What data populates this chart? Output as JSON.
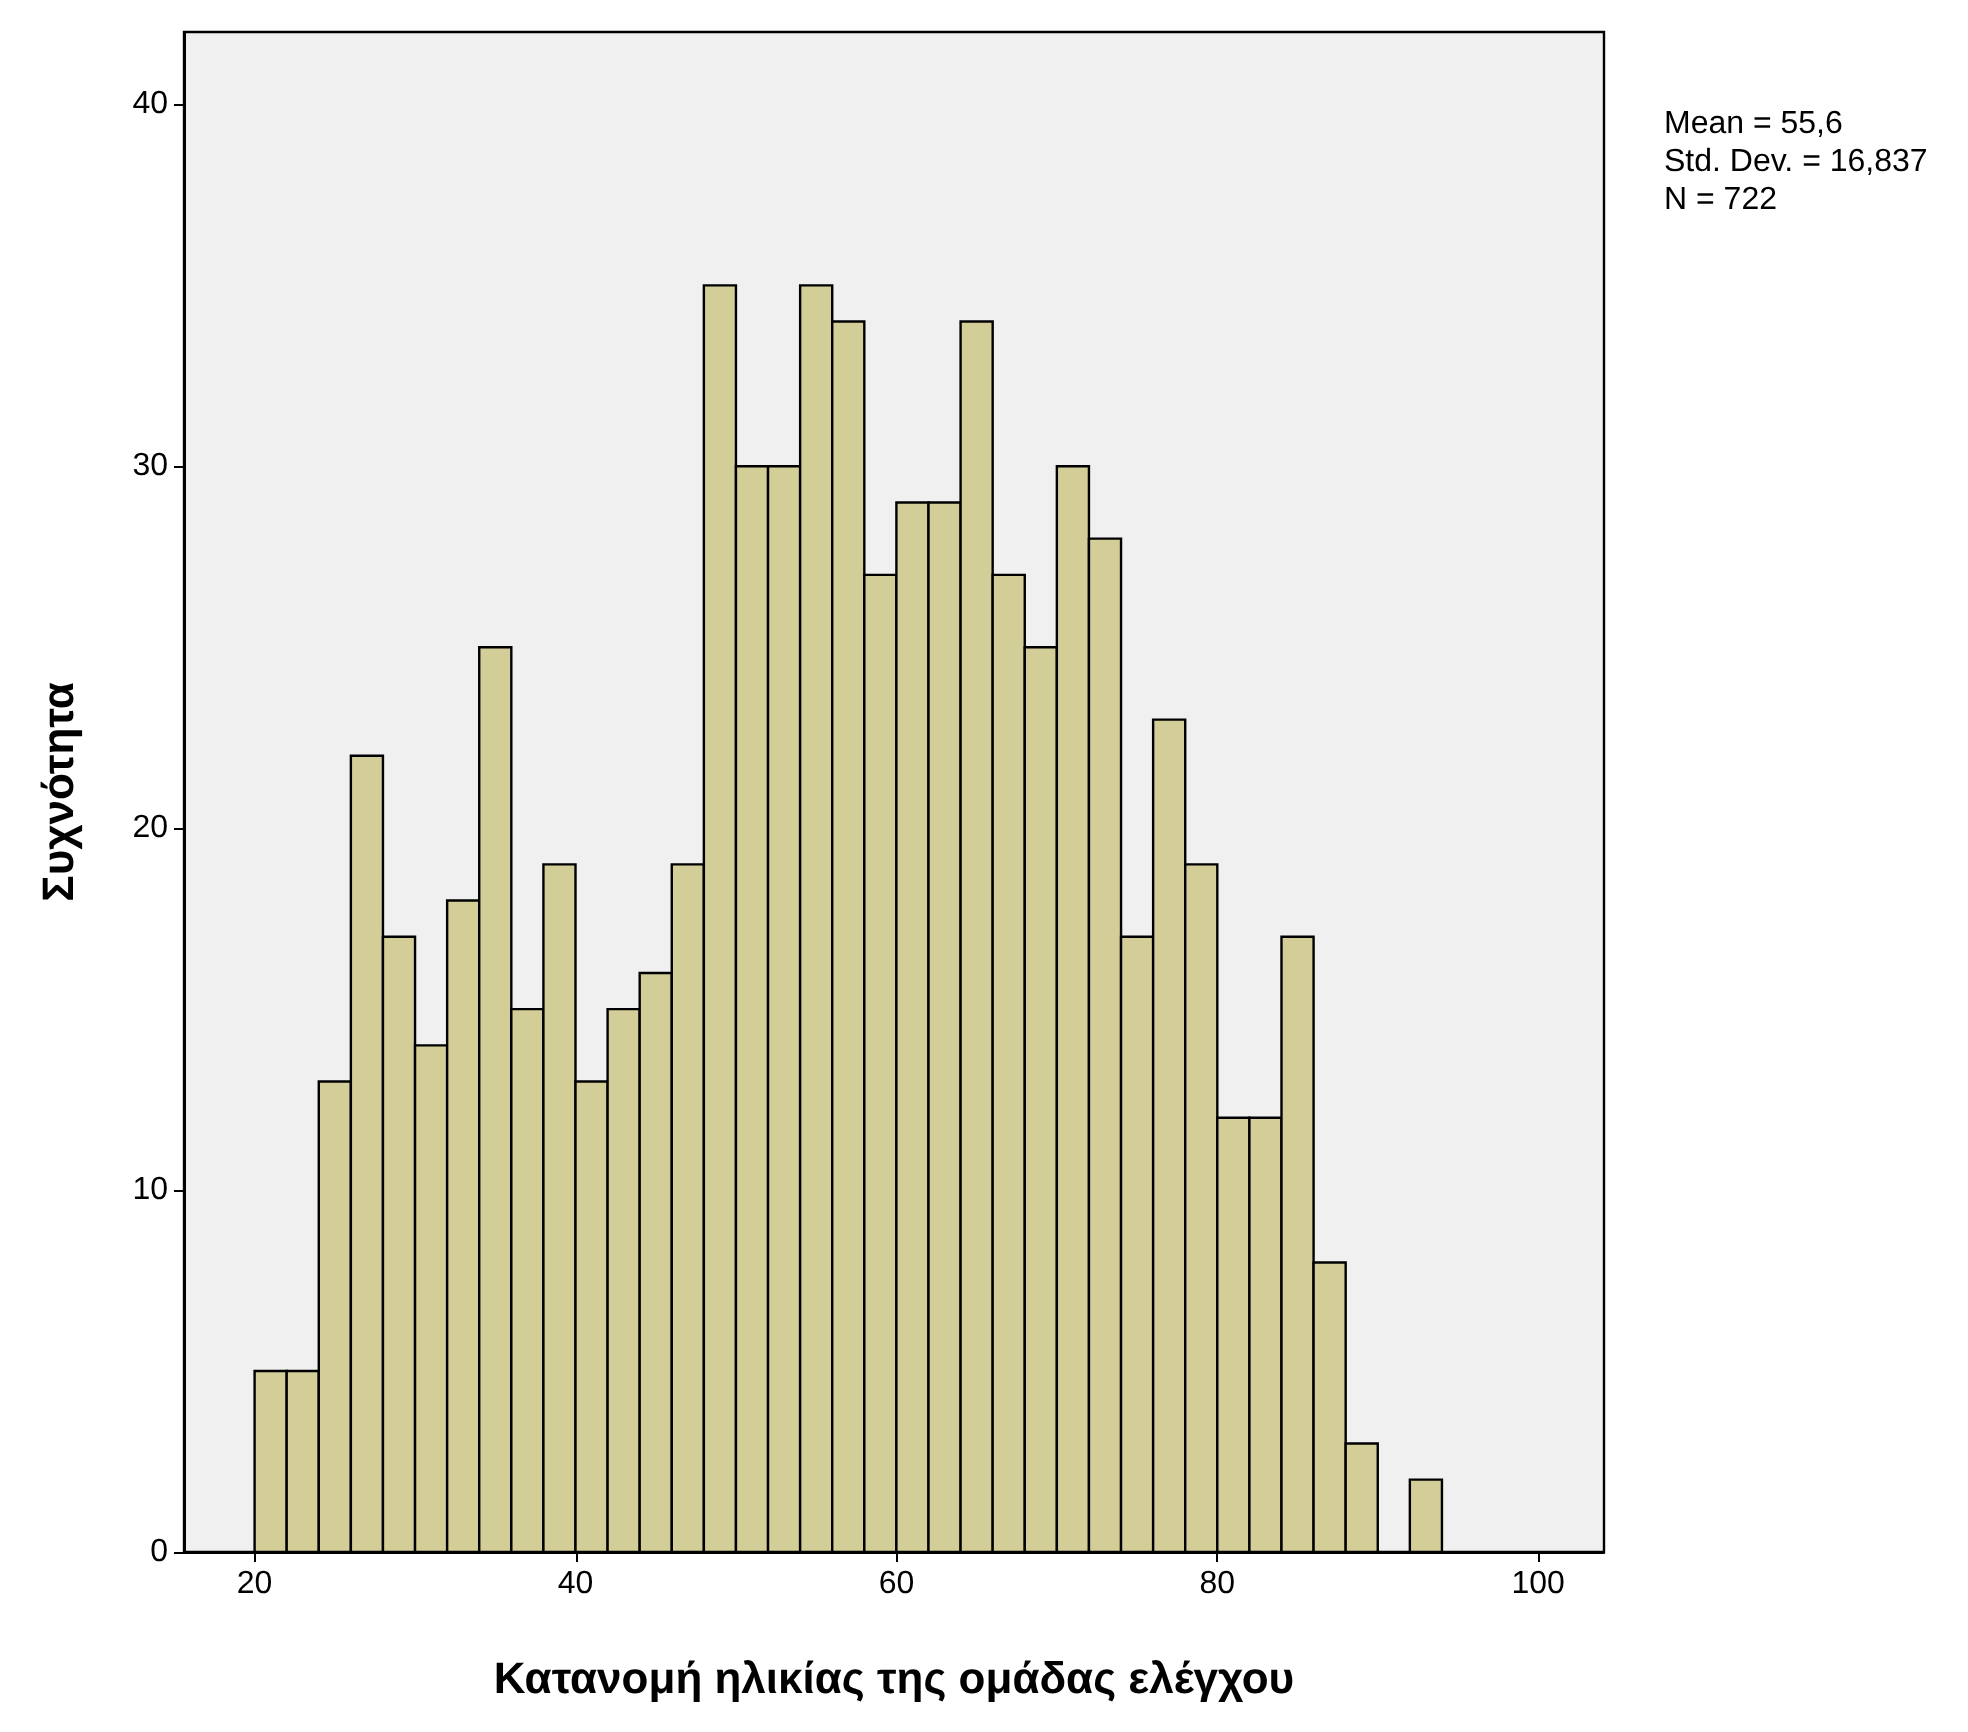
{
  "chart_data": {
    "type": "histogram",
    "xlabel": "Κατανομή ηλικίας της ομάδας ελέγχου",
    "ylabel": "Συχνότητα",
    "bins": [
      20,
      22,
      24,
      26,
      28,
      30,
      32,
      34,
      36,
      38,
      40,
      42,
      44,
      46,
      48,
      50,
      52,
      54,
      56,
      58,
      60,
      62,
      64,
      66,
      68,
      70,
      72,
      74,
      76,
      78,
      80,
      82,
      84,
      86,
      88,
      90,
      92,
      94
    ],
    "values": [
      5,
      5,
      13,
      22,
      17,
      14,
      18,
      25,
      15,
      19,
      13,
      15,
      16,
      19,
      35,
      30,
      30,
      35,
      34,
      27,
      29,
      29,
      34,
      27,
      25,
      30,
      28,
      17,
      23,
      19,
      12,
      12,
      17,
      8,
      3,
      0,
      2
    ],
    "color": "#d3ce97",
    "xlim": [
      15.6,
      104.1
    ],
    "xticks": [
      20,
      40,
      60,
      80,
      100
    ],
    "ylim": [
      0,
      42
    ],
    "yticks": [
      0,
      10,
      20,
      30,
      40
    ],
    "grid": false,
    "annotations": [
      "Mean = 55,6",
      "Std. Dev. = 16,837",
      "N = 722"
    ]
  }
}
